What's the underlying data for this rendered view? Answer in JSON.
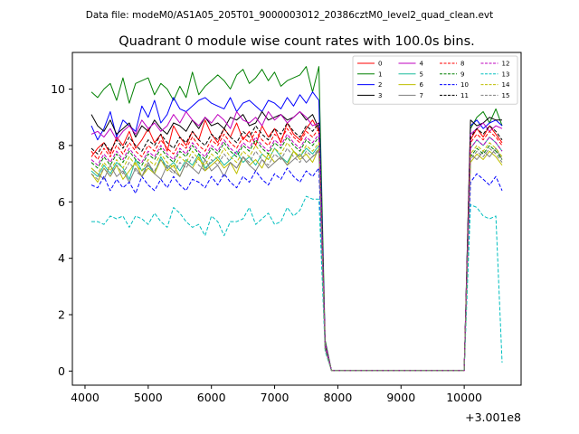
{
  "chart_data": {
    "type": "line",
    "suptitle": "Data file: modeM0/AS1A05_205T01_9000003012_20386cztM0_level2_quad_clean.evt",
    "title": "Quadrant 0 module wise count rates with 100.0s bins.",
    "xlabel": "",
    "ylabel": "",
    "x_offset_label": "+3.001e8",
    "x_offset": 300100000,
    "xlim": [
      3800,
      10900
    ],
    "ylim": [
      -0.5,
      11.3
    ],
    "xticks": [
      4000,
      5000,
      6000,
      7000,
      8000,
      9000,
      10000
    ],
    "yticks": [
      0,
      2,
      4,
      6,
      8,
      10
    ],
    "legend_position": "top-right",
    "x": [
      4100,
      4200,
      4300,
      4400,
      4500,
      4600,
      4700,
      4800,
      4900,
      5000,
      5100,
      5200,
      5300,
      5400,
      5500,
      5600,
      5700,
      5800,
      5900,
      6000,
      6100,
      6200,
      6300,
      6400,
      6500,
      6600,
      6700,
      6800,
      6900,
      7000,
      7100,
      7200,
      7300,
      7400,
      7500,
      7600,
      7700,
      7800,
      7900,
      8000,
      8100,
      8200,
      8300,
      8400,
      8500,
      8600,
      8700,
      8800,
      8900,
      9000,
      9100,
      9200,
      9300,
      9400,
      9500,
      9600,
      9700,
      9800,
      9900,
      10000,
      10100,
      10200,
      10300,
      10400,
      10500,
      10600
    ],
    "series": [
      {
        "name": "0",
        "color": "#ff0000",
        "dash": "solid",
        "values": [
          7.6,
          7.9,
          8.1,
          7.7,
          8.3,
          8.0,
          8.5,
          7.9,
          8.2,
          8.6,
          8.1,
          8.4,
          7.8,
          8.7,
          8.3,
          8.0,
          8.5,
          8.2,
          8.9,
          8.4,
          8.1,
          8.6,
          8.3,
          8.8,
          8.2,
          8.5,
          8.0,
          8.7,
          8.3,
          8.6,
          8.1,
          8.8,
          8.4,
          8.2,
          8.6,
          8.9,
          8.5,
          0.9,
          0.02,
          0.02,
          0.02,
          0.02,
          0.02,
          0.02,
          0.02,
          0.02,
          0.02,
          0.02,
          0.02,
          0.02,
          0.02,
          0.02,
          0.02,
          0.02,
          0.02,
          0.02,
          0.02,
          0.02,
          0.02,
          0.02,
          8.2,
          8.6,
          8.3,
          8.7,
          8.4,
          8.1
        ]
      },
      {
        "name": "1",
        "color": "#008000",
        "dash": "solid",
        "values": [
          9.9,
          9.7,
          10.0,
          10.2,
          9.6,
          10.4,
          9.5,
          10.2,
          10.3,
          10.4,
          9.8,
          10.2,
          10.0,
          9.6,
          10.1,
          9.7,
          10.6,
          9.8,
          10.1,
          10.3,
          10.5,
          10.3,
          10.0,
          10.5,
          10.7,
          10.2,
          10.4,
          10.7,
          10.3,
          10.6,
          10.1,
          10.3,
          10.4,
          10.5,
          10.8,
          9.9,
          10.8,
          1.1,
          0.02,
          0.02,
          0.02,
          0.02,
          0.02,
          0.02,
          0.02,
          0.02,
          0.02,
          0.02,
          0.02,
          0.02,
          0.02,
          0.02,
          0.02,
          0.02,
          0.02,
          0.02,
          0.02,
          0.02,
          0.02,
          0.02,
          8.6,
          9.0,
          9.2,
          8.8,
          9.3,
          8.7
        ]
      },
      {
        "name": "2",
        "color": "#0000ff",
        "dash": "solid",
        "values": [
          8.7,
          8.2,
          8.6,
          9.2,
          8.3,
          8.9,
          8.7,
          8.5,
          9.4,
          9.0,
          9.6,
          8.8,
          9.1,
          9.7,
          9.3,
          9.2,
          9.4,
          9.6,
          9.7,
          9.5,
          9.4,
          9.3,
          9.7,
          9.2,
          9.5,
          9.6,
          9.4,
          9.2,
          9.6,
          9.5,
          9.3,
          9.7,
          9.4,
          9.8,
          9.5,
          9.9,
          9.6,
          1.0,
          0.02,
          0.02,
          0.02,
          0.02,
          0.02,
          0.02,
          0.02,
          0.02,
          0.02,
          0.02,
          0.02,
          0.02,
          0.02,
          0.02,
          0.02,
          0.02,
          0.02,
          0.02,
          0.02,
          0.02,
          0.02,
          0.02,
          8.7,
          8.9,
          8.6,
          8.8,
          8.9,
          8.7
        ]
      },
      {
        "name": "3",
        "color": "#000000",
        "dash": "solid",
        "values": [
          9.1,
          8.7,
          8.5,
          8.9,
          8.4,
          8.6,
          8.8,
          8.3,
          8.7,
          8.5,
          8.9,
          8.6,
          8.4,
          8.8,
          8.7,
          8.5,
          8.9,
          8.6,
          9.0,
          8.7,
          8.8,
          8.6,
          9.0,
          8.9,
          9.1,
          8.7,
          8.8,
          9.2,
          8.9,
          9.0,
          9.1,
          8.9,
          9.0,
          9.2,
          8.9,
          9.1,
          8.6,
          0.9,
          0.02,
          0.02,
          0.02,
          0.02,
          0.02,
          0.02,
          0.02,
          0.02,
          0.02,
          0.02,
          0.02,
          0.02,
          0.02,
          0.02,
          0.02,
          0.02,
          0.02,
          0.02,
          0.02,
          0.02,
          0.02,
          0.02,
          8.9,
          8.7,
          8.8,
          9.0,
          8.9,
          8.9
        ]
      },
      {
        "name": "4",
        "color": "#bf00bf",
        "dash": "solid",
        "values": [
          8.4,
          8.5,
          8.3,
          8.6,
          8.2,
          8.5,
          8.7,
          8.4,
          8.9,
          8.6,
          8.8,
          8.5,
          8.7,
          9.1,
          8.8,
          9.2,
          8.9,
          8.7,
          9.0,
          8.8,
          9.1,
          8.9,
          8.6,
          9.2,
          8.9,
          8.8,
          9.0,
          8.7,
          9.2,
          8.9,
          9.1,
          8.8,
          9.0,
          9.2,
          9.0,
          8.7,
          8.8,
          1.0,
          0.02,
          0.02,
          0.02,
          0.02,
          0.02,
          0.02,
          0.02,
          0.02,
          0.02,
          0.02,
          0.02,
          0.02,
          0.02,
          0.02,
          0.02,
          0.02,
          0.02,
          0.02,
          0.02,
          0.02,
          0.02,
          0.02,
          8.4,
          8.6,
          8.8,
          8.5,
          8.7,
          8.6
        ]
      },
      {
        "name": "5",
        "color": "#1abc9c",
        "dash": "solid",
        "values": [
          7.1,
          6.9,
          7.3,
          7.0,
          7.4,
          7.2,
          6.8,
          7.5,
          7.1,
          7.3,
          7.0,
          7.6,
          7.2,
          7.4,
          7.1,
          7.5,
          7.3,
          7.7,
          7.2,
          7.4,
          7.6,
          7.3,
          7.5,
          7.8,
          7.4,
          7.6,
          7.3,
          7.7,
          7.5,
          7.9,
          7.6,
          7.4,
          7.8,
          7.6,
          7.9,
          7.7,
          8.0,
          0.9,
          0.02,
          0.02,
          0.02,
          0.02,
          0.02,
          0.02,
          0.02,
          0.02,
          0.02,
          0.02,
          0.02,
          0.02,
          0.02,
          0.02,
          0.02,
          0.02,
          0.02,
          0.02,
          0.02,
          0.02,
          0.02,
          0.02,
          7.9,
          8.2,
          8.0,
          8.3,
          8.1,
          7.8
        ]
      },
      {
        "name": "6",
        "color": "#bfbf00",
        "dash": "solid",
        "values": [
          7.0,
          6.7,
          7.2,
          6.9,
          7.3,
          6.8,
          7.1,
          7.4,
          6.9,
          7.2,
          7.0,
          7.5,
          7.1,
          7.3,
          6.9,
          7.4,
          7.2,
          7.6,
          7.1,
          7.3,
          7.5,
          7.2,
          7.4,
          7.0,
          7.6,
          7.3,
          7.5,
          7.2,
          7.7,
          7.4,
          7.6,
          7.3,
          7.8,
          7.5,
          7.7,
          7.4,
          7.9,
          0.8,
          0.02,
          0.02,
          0.02,
          0.02,
          0.02,
          0.02,
          0.02,
          0.02,
          0.02,
          0.02,
          0.02,
          0.02,
          0.02,
          0.02,
          0.02,
          0.02,
          0.02,
          0.02,
          0.02,
          0.02,
          0.02,
          0.02,
          7.4,
          7.7,
          7.5,
          7.8,
          7.6,
          7.3
        ]
      },
      {
        "name": "7",
        "color": "#7f7f7f",
        "dash": "solid",
        "values": [
          7.2,
          7.0,
          6.8,
          7.3,
          6.9,
          7.1,
          6.7,
          7.2,
          6.9,
          7.4,
          7.0,
          6.8,
          7.3,
          7.1,
          6.9,
          7.4,
          7.2,
          7.0,
          7.5,
          7.1,
          7.3,
          6.9,
          7.4,
          7.2,
          7.6,
          7.3,
          7.1,
          7.5,
          7.2,
          7.4,
          7.6,
          7.3,
          7.5,
          7.7,
          7.4,
          7.6,
          7.8,
          0.8,
          0.02,
          0.02,
          0.02,
          0.02,
          0.02,
          0.02,
          0.02,
          0.02,
          0.02,
          0.02,
          0.02,
          0.02,
          0.02,
          0.02,
          0.02,
          0.02,
          0.02,
          0.02,
          0.02,
          0.02,
          0.02,
          0.02,
          7.7,
          7.5,
          7.8,
          7.6,
          7.9,
          7.5
        ]
      },
      {
        "name": "8",
        "color": "#ff0000",
        "dash": "dashed",
        "values": [
          7.8,
          7.5,
          7.9,
          7.6,
          8.0,
          7.7,
          8.1,
          7.8,
          7.6,
          8.0,
          7.8,
          8.2,
          7.9,
          7.7,
          8.1,
          7.9,
          8.3,
          8.0,
          7.8,
          8.2,
          8.0,
          8.4,
          8.1,
          7.9,
          8.3,
          8.1,
          8.5,
          8.2,
          8.0,
          8.4,
          8.2,
          8.6,
          8.3,
          8.1,
          8.5,
          8.3,
          8.6,
          0.9,
          0.02,
          0.02,
          0.02,
          0.02,
          0.02,
          0.02,
          0.02,
          0.02,
          0.02,
          0.02,
          0.02,
          0.02,
          0.02,
          0.02,
          0.02,
          0.02,
          0.02,
          0.02,
          0.02,
          0.02,
          0.02,
          0.02,
          8.1,
          8.4,
          8.2,
          8.5,
          8.3,
          8.0
        ]
      },
      {
        "name": "9",
        "color": "#008000",
        "dash": "dashed",
        "values": [
          7.4,
          7.2,
          7.6,
          7.3,
          7.7,
          7.4,
          7.8,
          7.5,
          7.3,
          7.7,
          7.5,
          7.9,
          7.6,
          7.4,
          7.8,
          7.6,
          8.0,
          7.7,
          7.5,
          7.9,
          7.7,
          8.1,
          7.8,
          7.6,
          8.0,
          7.8,
          8.2,
          7.9,
          7.7,
          8.1,
          7.9,
          8.3,
          8.0,
          7.8,
          8.2,
          8.0,
          8.3,
          0.9,
          0.02,
          0.02,
          0.02,
          0.02,
          0.02,
          0.02,
          0.02,
          0.02,
          0.02,
          0.02,
          0.02,
          0.02,
          0.02,
          0.02,
          0.02,
          0.02,
          0.02,
          0.02,
          0.02,
          0.02,
          0.02,
          0.02,
          7.6,
          7.9,
          7.7,
          8.0,
          7.8,
          7.5
        ]
      },
      {
        "name": "10",
        "color": "#0000ff",
        "dash": "dashed",
        "values": [
          6.6,
          6.5,
          6.9,
          6.4,
          6.8,
          6.5,
          6.7,
          6.3,
          6.9,
          6.6,
          6.4,
          6.8,
          6.5,
          6.9,
          6.6,
          6.4,
          6.8,
          6.7,
          6.5,
          6.9,
          6.6,
          7.0,
          6.7,
          6.5,
          6.9,
          6.7,
          7.1,
          6.8,
          6.6,
          7.0,
          6.8,
          7.2,
          6.9,
          6.7,
          7.1,
          6.9,
          7.2,
          0.8,
          0.02,
          0.02,
          0.02,
          0.02,
          0.02,
          0.02,
          0.02,
          0.02,
          0.02,
          0.02,
          0.02,
          0.02,
          0.02,
          0.02,
          0.02,
          0.02,
          0.02,
          0.02,
          0.02,
          0.02,
          0.02,
          0.02,
          6.7,
          7.0,
          6.8,
          6.6,
          6.9,
          6.4
        ]
      },
      {
        "name": "11",
        "color": "#000000",
        "dash": "dashed",
        "values": [
          7.9,
          7.7,
          8.1,
          7.8,
          8.2,
          7.9,
          8.3,
          8.0,
          7.8,
          8.2,
          8.0,
          8.4,
          8.1,
          7.9,
          8.3,
          8.1,
          8.5,
          8.2,
          8.0,
          8.4,
          8.2,
          8.6,
          8.3,
          8.1,
          8.5,
          8.3,
          8.7,
          8.4,
          8.2,
          8.6,
          8.4,
          8.8,
          8.5,
          8.3,
          8.7,
          8.5,
          8.8,
          0.9,
          0.02,
          0.02,
          0.02,
          0.02,
          0.02,
          0.02,
          0.02,
          0.02,
          0.02,
          0.02,
          0.02,
          0.02,
          0.02,
          0.02,
          0.02,
          0.02,
          0.02,
          0.02,
          0.02,
          0.02,
          0.02,
          0.02,
          8.3,
          8.6,
          8.4,
          8.7,
          8.5,
          8.2
        ]
      },
      {
        "name": "12",
        "color": "#bf00bf",
        "dash": "dashed",
        "values": [
          7.5,
          7.3,
          7.7,
          7.4,
          7.8,
          7.5,
          7.9,
          7.6,
          7.4,
          7.8,
          7.6,
          8.0,
          7.7,
          7.5,
          7.9,
          7.7,
          8.1,
          7.8,
          7.6,
          8.0,
          7.8,
          8.2,
          7.9,
          7.7,
          8.1,
          7.9,
          8.3,
          8.0,
          7.8,
          8.2,
          8.0,
          8.4,
          8.1,
          7.9,
          8.3,
          8.1,
          8.4,
          0.9,
          0.02,
          0.02,
          0.02,
          0.02,
          0.02,
          0.02,
          0.02,
          0.02,
          0.02,
          0.02,
          0.02,
          0.02,
          0.02,
          0.02,
          0.02,
          0.02,
          0.02,
          0.02,
          0.02,
          0.02,
          0.02,
          0.02,
          7.9,
          8.2,
          8.0,
          8.3,
          8.1,
          7.8
        ]
      },
      {
        "name": "13",
        "color": "#00bfbf",
        "dash": "dashed",
        "values": [
          5.3,
          5.3,
          5.2,
          5.5,
          5.4,
          5.5,
          5.1,
          5.5,
          5.4,
          5.2,
          5.6,
          5.3,
          5.1,
          5.8,
          5.6,
          5.3,
          5.1,
          5.2,
          4.8,
          5.5,
          5.3,
          4.8,
          5.3,
          5.3,
          5.4,
          5.8,
          5.2,
          5.4,
          5.6,
          5.2,
          5.3,
          5.8,
          5.5,
          5.7,
          6.2,
          6.1,
          6.1,
          0.7,
          0.02,
          0.02,
          0.02,
          0.02,
          0.02,
          0.02,
          0.02,
          0.02,
          0.02,
          0.02,
          0.02,
          0.02,
          0.02,
          0.02,
          0.02,
          0.02,
          0.02,
          0.02,
          0.02,
          0.02,
          0.02,
          0.02,
          5.9,
          5.8,
          5.5,
          5.4,
          5.5,
          0.3
        ]
      },
      {
        "name": "14",
        "color": "#bfbf00",
        "dash": "dashed",
        "values": [
          7.2,
          7.0,
          7.4,
          7.1,
          7.5,
          7.2,
          7.6,
          7.3,
          7.1,
          7.5,
          7.3,
          7.7,
          7.4,
          7.2,
          7.6,
          7.4,
          7.8,
          7.5,
          7.3,
          7.7,
          7.5,
          7.9,
          7.6,
          7.4,
          7.8,
          7.6,
          8.0,
          7.7,
          7.5,
          7.9,
          7.7,
          8.1,
          7.8,
          7.6,
          8.0,
          7.8,
          8.1,
          0.8,
          0.02,
          0.02,
          0.02,
          0.02,
          0.02,
          0.02,
          0.02,
          0.02,
          0.02,
          0.02,
          0.02,
          0.02,
          0.02,
          0.02,
          0.02,
          0.02,
          0.02,
          0.02,
          0.02,
          0.02,
          0.02,
          0.02,
          7.7,
          8.0,
          7.8,
          8.1,
          7.9,
          7.6
        ]
      },
      {
        "name": "15",
        "color": "#7f7f7f",
        "dash": "dashed",
        "values": [
          7.0,
          6.8,
          7.2,
          6.9,
          7.3,
          7.0,
          7.4,
          7.1,
          6.9,
          7.3,
          7.1,
          7.5,
          7.2,
          7.0,
          7.4,
          7.2,
          7.6,
          7.3,
          7.1,
          7.5,
          7.3,
          7.7,
          7.4,
          7.2,
          7.6,
          7.4,
          7.8,
          7.5,
          7.3,
          7.7,
          7.5,
          7.9,
          7.6,
          7.4,
          7.8,
          7.6,
          7.9,
          0.8,
          0.02,
          0.02,
          0.02,
          0.02,
          0.02,
          0.02,
          0.02,
          0.02,
          0.02,
          0.02,
          0.02,
          0.02,
          0.02,
          0.02,
          0.02,
          0.02,
          0.02,
          0.02,
          0.02,
          0.02,
          0.02,
          0.02,
          7.5,
          7.8,
          7.6,
          7.9,
          7.7,
          7.4
        ]
      }
    ]
  }
}
